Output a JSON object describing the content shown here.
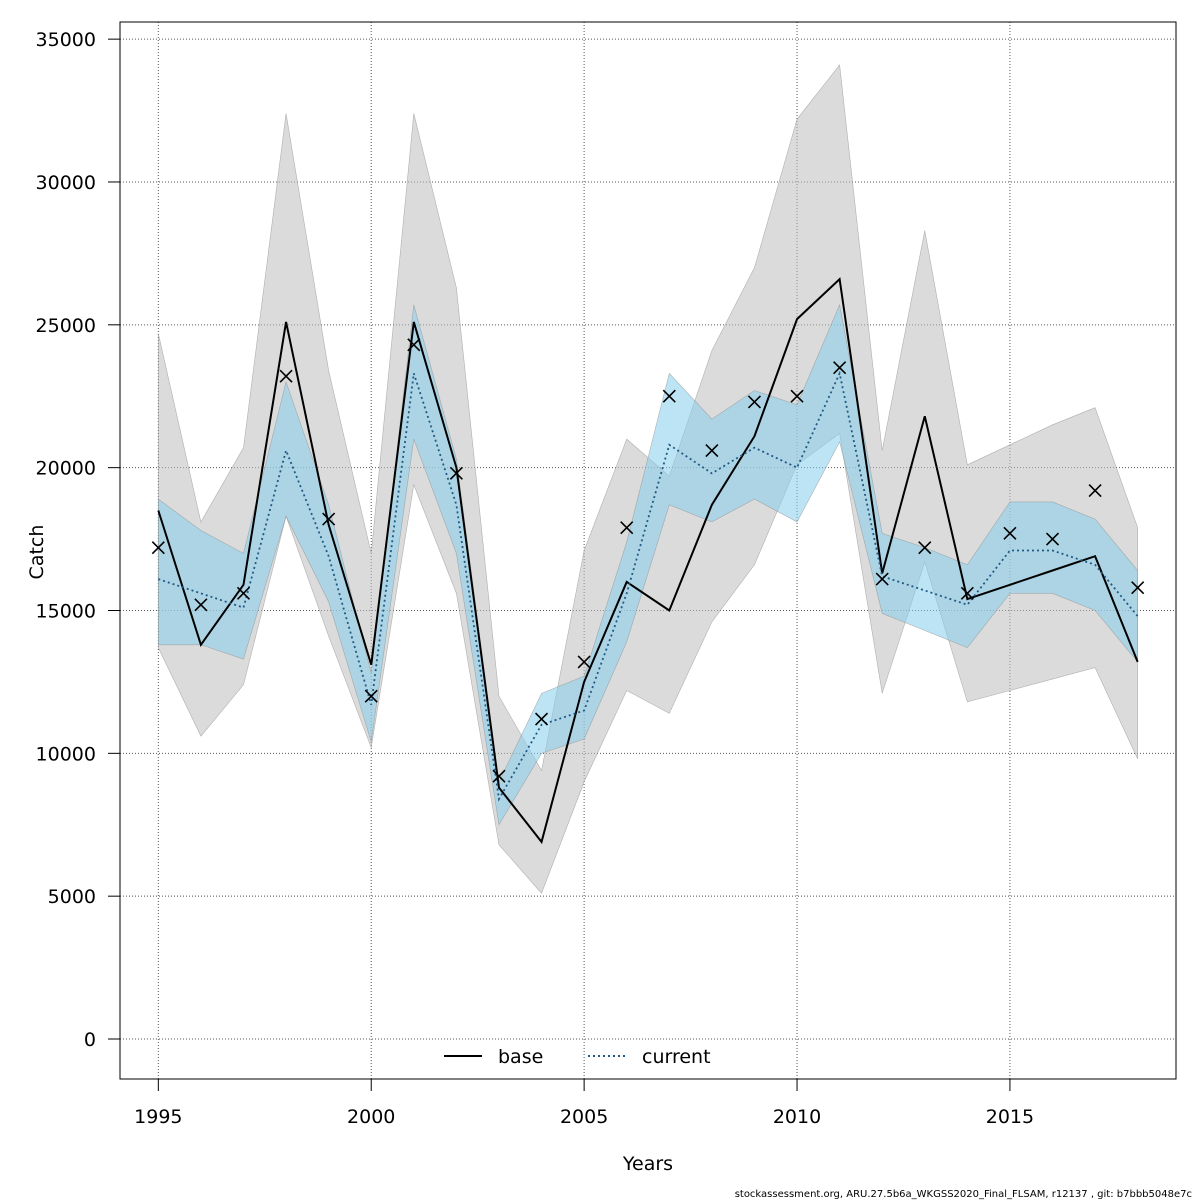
{
  "chart_data": {
    "type": "line",
    "xlabel": "Years",
    "ylabel": "Catch",
    "x": [
      1995,
      1996,
      1997,
      1998,
      1999,
      2000,
      2001,
      2002,
      2003,
      2004,
      2005,
      2006,
      2007,
      2008,
      2009,
      2010,
      2011,
      2012,
      2013,
      2014,
      2015,
      2016,
      2017,
      2018
    ],
    "xlim": [
      1994.1,
      2018.9
    ],
    "ylim": [
      -1400,
      35600
    ],
    "x_ticks": [
      1995,
      2000,
      2005,
      2010,
      2015
    ],
    "y_ticks": [
      0,
      5000,
      10000,
      15000,
      20000,
      25000,
      30000,
      35000
    ],
    "grid": true,
    "legend_placement": "bottom",
    "series": [
      {
        "name": "base",
        "line_style": "solid",
        "color": "#000000",
        "band_color": "#bebebe",
        "values": [
          18500,
          13800,
          15900,
          25100,
          18000,
          13100,
          25100,
          20000,
          8800,
          6900,
          12500,
          16000,
          15000,
          18700,
          21100,
          25200,
          26600,
          16300,
          21800,
          15400,
          15900,
          16400,
          16900,
          13200
        ],
        "lower": [
          13700,
          10600,
          12400,
          18300,
          14100,
          10200,
          19400,
          15600,
          6800,
          5100,
          9000,
          12200,
          11400,
          14600,
          16600,
          20100,
          21200,
          12100,
          16700,
          11800,
          12200,
          12600,
          13000,
          9800
        ],
        "upper": [
          24700,
          18100,
          20700,
          32400,
          23400,
          17000,
          32400,
          26300,
          12000,
          9400,
          17100,
          21000,
          19700,
          24100,
          27000,
          32200,
          34100,
          20600,
          28300,
          20100,
          20800,
          21500,
          22100,
          17900
        ]
      },
      {
        "name": "current",
        "line_style": "dotted",
        "color": "#1f5a86",
        "band_color": "#87ceeb",
        "values": [
          16100,
          15600,
          15100,
          20600,
          16900,
          11700,
          23300,
          18700,
          8400,
          11000,
          11500,
          15600,
          20800,
          19800,
          20700,
          20000,
          23300,
          16200,
          15700,
          15200,
          17100,
          17100,
          16600,
          14800
        ],
        "lower": [
          13800,
          13800,
          13300,
          18300,
          15300,
          10400,
          21000,
          17000,
          7500,
          10000,
          10500,
          13900,
          18700,
          18100,
          18900,
          18100,
          20900,
          14900,
          14300,
          13700,
          15600,
          15600,
          15000,
          13200
        ],
        "upper": [
          18900,
          17800,
          17000,
          23000,
          18700,
          12800,
          25700,
          20300,
          9000,
          12100,
          12700,
          17400,
          23300,
          21700,
          22700,
          22200,
          25700,
          17700,
          17200,
          16600,
          18800,
          18800,
          18200,
          16400
        ]
      },
      {
        "name": "observed",
        "marker": "x",
        "color": "#000000",
        "values": [
          17200,
          15200,
          15600,
          23200,
          18200,
          12000,
          24300,
          19800,
          9200,
          11200,
          13200,
          17900,
          22500,
          20600,
          22300,
          22500,
          23500,
          16100,
          17200,
          15600,
          17700,
          17500,
          19200,
          15800
        ]
      }
    ]
  },
  "legend": {
    "base_label": "base",
    "current_label": "current"
  },
  "footer": {
    "text": "stockassessment.org, ARU.27.5b6a_WKGSS2020_Final_FLSAM, r12137 , git: b7bbb5048e7c"
  }
}
